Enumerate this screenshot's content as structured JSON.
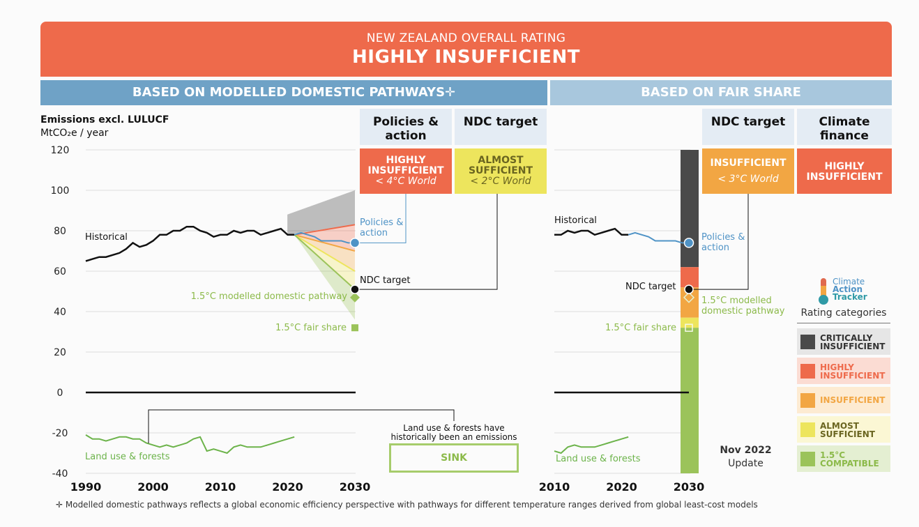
{
  "header": {
    "subtitle": "NEW ZEALAND OVERALL RATING",
    "title": "HIGHLY INSUFFICIENT"
  },
  "bands": {
    "left": "BASED ON MODELLED DOMESTIC PATHWAYS✛",
    "right": "BASED ON FAIR SHARE"
  },
  "columns": {
    "policies": {
      "heading": "Policies & action",
      "rating": "HIGHLY INSUFFICIENT",
      "world": "< 4°C World"
    },
    "ndc_left": {
      "heading": "NDC target",
      "rating": "ALMOST SUFFICIENT",
      "world": "< 2°C World"
    },
    "ndc_right": {
      "heading": "NDC target",
      "rating": "INSUFFICIENT",
      "world": "< 3°C World"
    },
    "finance": {
      "heading": "Climate finance",
      "rating": "HIGHLY INSUFFICIENT"
    }
  },
  "axis": {
    "title": "Emissions excl. LULUCF",
    "unit": "MtCO₂e / year"
  },
  "labels": {
    "historical": "Historical",
    "policies_action": "Policies & action",
    "ndc_target": "NDC target",
    "modelled_pathway": "1.5°C modelled domestic pathway",
    "fair_share": "1.5°C fair share",
    "land_use": "Land use & forests",
    "sink_note": "Land use & forests have historically been an emissions",
    "sink": "SINK"
  },
  "logo": {
    "line1": "Climate",
    "line2": "Action",
    "line3": "Tracker"
  },
  "legend": {
    "title": "Rating categories",
    "items": [
      {
        "label": "CRITICALLY INSUFFICIENT",
        "color": "#4a4a4a",
        "bg": "#e6e6e6",
        "text": "#333333"
      },
      {
        "label": "HIGHLY INSUFFICIENT",
        "color": "#ee6a4b",
        "bg": "#fbdcd3",
        "text": "#ee6a4b"
      },
      {
        "label": "INSUFFICIENT",
        "color": "#f2a643",
        "bg": "#fdebd2",
        "text": "#f2a643"
      },
      {
        "label": "ALMOST SUFFICIENT",
        "color": "#ede55d",
        "bg": "#fbf7d4",
        "text": "#6a6520"
      },
      {
        "label": "1.5°C COMPATIBLE",
        "color": "#9bc35a",
        "bg": "#e4efd2",
        "text": "#8cba4a"
      }
    ]
  },
  "update": {
    "line1": "Nov 2022",
    "line2": "Update"
  },
  "footnote": "✛  Modelled domestic pathways reflects a global economic efficiency perspective with pathways for different temperature ranges derived from global least-cost models",
  "colors": {
    "header": "#ee6a4b",
    "band_left": "#6fa2c6",
    "band_right": "#a8c7dd",
    "historical": "#111111",
    "policies": "#4f93c6",
    "land_use": "#6cb34a",
    "fair": "#9bc35a"
  },
  "chart_data": [
    {
      "type": "line",
      "title": "Emissions excl. LULUCF",
      "ylabel": "MtCO₂e / year",
      "ylim": [
        -40,
        120
      ],
      "yticks": [
        120,
        100,
        80,
        60,
        40,
        20,
        0,
        -20,
        -40
      ],
      "xlim": [
        1990,
        2030
      ],
      "xticks": [
        1990,
        2000,
        2010,
        2020,
        2030
      ],
      "series": [
        {
          "name": "Historical",
          "x": [
            1990,
            1991,
            1992,
            1993,
            1994,
            1995,
            1996,
            1997,
            1998,
            1999,
            2000,
            2001,
            2002,
            2003,
            2004,
            2005,
            2006,
            2007,
            2008,
            2009,
            2010,
            2011,
            2012,
            2013,
            2014,
            2015,
            2016,
            2017,
            2018,
            2019,
            2020,
            2021
          ],
          "values": [
            65,
            66,
            67,
            67,
            68,
            69,
            71,
            74,
            72,
            73,
            75,
            78,
            78,
            80,
            80,
            82,
            82,
            80,
            79,
            77,
            78,
            78,
            80,
            79,
            80,
            80,
            78,
            79,
            80,
            81,
            78,
            78
          ]
        },
        {
          "name": "Policies & action",
          "x": [
            2021,
            2022,
            2023,
            2024,
            2025,
            2026,
            2027,
            2028,
            2029,
            2030
          ],
          "values": [
            78,
            79,
            78,
            77,
            75,
            75,
            75,
            75,
            74,
            74
          ]
        },
        {
          "name": "Land use & forests",
          "x": [
            1990,
            1991,
            1992,
            1993,
            1994,
            1995,
            1996,
            1997,
            1998,
            1999,
            2000,
            2001,
            2002,
            2003,
            2004,
            2005,
            2006,
            2007,
            2008,
            2009,
            2010,
            2011,
            2012,
            2013,
            2014,
            2015,
            2016,
            2017,
            2018,
            2019,
            2020,
            2021
          ],
          "values": [
            -21,
            -23,
            -23,
            -24,
            -23,
            -22,
            -22,
            -23,
            -23,
            -25,
            -26,
            -27,
            -26,
            -27,
            -26,
            -25,
            -23,
            -22,
            -29,
            -28,
            -29,
            -30,
            -27,
            -26,
            -27,
            -27,
            -27,
            -26,
            -25,
            -24,
            -23,
            -22
          ]
        }
      ],
      "points": [
        {
          "name": "NDC target",
          "x": 2030,
          "y": 51
        },
        {
          "name": "1.5°C modelled domestic pathway",
          "x": 2030,
          "y": 47
        },
        {
          "name": "1.5°C fair share",
          "x": 2030,
          "y": 32
        }
      ],
      "ranges": [
        {
          "category": "CRITICALLY INSUFFICIENT",
          "x": [
            2021,
            2030
          ],
          "low": [
            78,
            83
          ],
          "high": [
            88,
            100
          ]
        },
        {
          "category": "HIGHLY INSUFFICIENT",
          "x": [
            2021,
            2030
          ],
          "low": [
            78,
            70
          ],
          "high": [
            78,
            83
          ]
        },
        {
          "category": "INSUFFICIENT",
          "x": [
            2021,
            2030
          ],
          "low": [
            78,
            60
          ],
          "high": [
            78,
            70
          ]
        },
        {
          "category": "ALMOST SUFFICIENT",
          "x": [
            2021,
            2030
          ],
          "low": [
            78,
            51
          ],
          "high": [
            78,
            60
          ]
        },
        {
          "category": "1.5°C COMPATIBLE",
          "x": [
            2021,
            2030
          ],
          "low": [
            78,
            36
          ],
          "high": [
            78,
            51
          ]
        }
      ]
    },
    {
      "type": "line",
      "ylim": [
        -40,
        120
      ],
      "xlim": [
        2010,
        2030
      ],
      "xticks": [
        2010,
        2020,
        2030
      ],
      "series": [
        {
          "name": "Historical",
          "x": [
            2010,
            2011,
            2012,
            2013,
            2014,
            2015,
            2016,
            2017,
            2018,
            2019,
            2020,
            2021
          ],
          "values": [
            78,
            78,
            80,
            79,
            80,
            80,
            78,
            79,
            80,
            81,
            78,
            78
          ]
        },
        {
          "name": "Policies & action",
          "x": [
            2021,
            2022,
            2023,
            2024,
            2025,
            2026,
            2027,
            2028,
            2029,
            2030
          ],
          "values": [
            78,
            79,
            78,
            77,
            75,
            75,
            75,
            75,
            74,
            74
          ]
        },
        {
          "name": "Land use & forests",
          "x": [
            2010,
            2011,
            2012,
            2013,
            2014,
            2015,
            2016,
            2017,
            2018,
            2019,
            2020,
            2021
          ],
          "values": [
            -29,
            -30,
            -27,
            -26,
            -27,
            -27,
            -27,
            -26,
            -25,
            -24,
            -23,
            -22
          ]
        }
      ],
      "points": [
        {
          "name": "NDC target",
          "x": 2030,
          "y": 51
        },
        {
          "name": "1.5°C modelled domestic pathway",
          "x": 2030,
          "y": 47
        },
        {
          "name": "1.5°C fair share",
          "x": 2030,
          "y": 32
        }
      ],
      "fair_share_bar": [
        {
          "category": "CRITICALLY INSUFFICIENT",
          "from": 62,
          "to": 120
        },
        {
          "category": "HIGHLY INSUFFICIENT",
          "from": 52,
          "to": 62
        },
        {
          "category": "INSUFFICIENT",
          "from": 37,
          "to": 52
        },
        {
          "category": "ALMOST SUFFICIENT",
          "from": 32,
          "to": 37
        },
        {
          "category": "1.5°C COMPATIBLE",
          "from": -40,
          "to": 32
        }
      ]
    }
  ]
}
